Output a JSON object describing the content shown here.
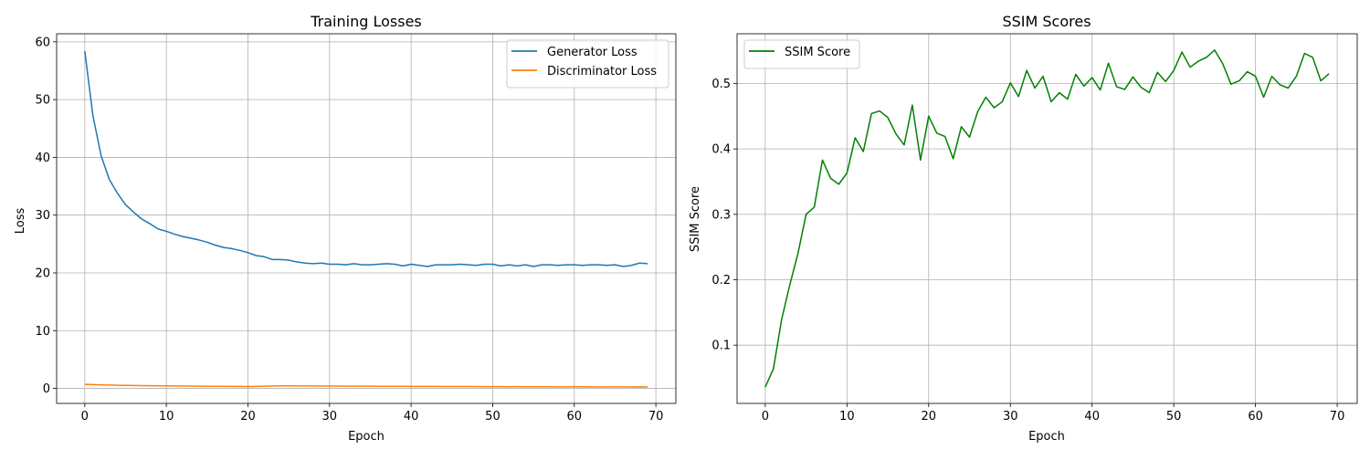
{
  "chart_data": [
    {
      "type": "line",
      "title": "Training Losses",
      "xlabel": "Epoch",
      "ylabel": "Loss",
      "xlim": [
        -3.45,
        72.45
      ],
      "ylim": [
        -2.6,
        61.4
      ],
      "xticks": [
        0,
        10,
        20,
        30,
        40,
        50,
        60,
        70
      ],
      "xtick_labels": [
        "0",
        "10",
        "20",
        "30",
        "40",
        "50",
        "60",
        "70"
      ],
      "yticks": [
        0,
        10,
        20,
        30,
        40,
        50,
        60
      ],
      "ytick_labels": [
        "0",
        "10",
        "20",
        "30",
        "40",
        "50",
        "60"
      ],
      "grid": true,
      "legend_position": "top-right",
      "series": [
        {
          "name": "Generator Loss",
          "color": "#1f77b4",
          "x": [
            0,
            1,
            2,
            3,
            4,
            5,
            6,
            7,
            8,
            9,
            10,
            11,
            12,
            13,
            14,
            15,
            16,
            17,
            18,
            19,
            20,
            21,
            22,
            23,
            24,
            25,
            26,
            27,
            28,
            29,
            30,
            31,
            32,
            33,
            34,
            35,
            36,
            37,
            38,
            39,
            40,
            41,
            42,
            43,
            44,
            45,
            46,
            47,
            48,
            49,
            50,
            51,
            52,
            53,
            54,
            55,
            56,
            57,
            58,
            59,
            60,
            61,
            62,
            63,
            64,
            65,
            66,
            67,
            68,
            69
          ],
          "values": [
            58.4,
            47.2,
            40.3,
            36.2,
            33.8,
            31.8,
            30.5,
            29.3,
            28.5,
            27.6,
            27.2,
            26.7,
            26.3,
            26.0,
            25.7,
            25.3,
            24.8,
            24.4,
            24.2,
            23.9,
            23.5,
            23.0,
            22.8,
            22.3,
            22.3,
            22.2,
            21.9,
            21.7,
            21.6,
            21.7,
            21.5,
            21.5,
            21.4,
            21.6,
            21.4,
            21.4,
            21.5,
            21.6,
            21.5,
            21.2,
            21.5,
            21.3,
            21.1,
            21.4,
            21.4,
            21.4,
            21.5,
            21.4,
            21.3,
            21.5,
            21.5,
            21.2,
            21.4,
            21.2,
            21.4,
            21.1,
            21.4,
            21.4,
            21.3,
            21.4,
            21.4,
            21.3,
            21.4,
            21.4,
            21.3,
            21.4,
            21.1,
            21.3,
            21.7,
            21.6
          ]
        },
        {
          "name": "Discriminator Loss",
          "color": "#ff7f0e",
          "x": [
            0,
            1,
            2,
            3,
            4,
            5,
            6,
            7,
            8,
            9,
            10,
            11,
            12,
            13,
            14,
            15,
            16,
            17,
            18,
            19,
            20,
            21,
            22,
            23,
            24,
            25,
            26,
            27,
            28,
            29,
            30,
            31,
            32,
            33,
            34,
            35,
            36,
            37,
            38,
            39,
            40,
            41,
            42,
            43,
            44,
            45,
            46,
            47,
            48,
            49,
            50,
            51,
            52,
            53,
            54,
            55,
            56,
            57,
            58,
            59,
            60,
            61,
            62,
            63,
            64,
            65,
            66,
            67,
            68,
            69
          ],
          "values": [
            0.7,
            0.65,
            0.6,
            0.58,
            0.55,
            0.52,
            0.5,
            0.48,
            0.46,
            0.45,
            0.44,
            0.42,
            0.41,
            0.4,
            0.38,
            0.37,
            0.36,
            0.36,
            0.35,
            0.34,
            0.33,
            0.35,
            0.38,
            0.42,
            0.45,
            0.44,
            0.43,
            0.42,
            0.42,
            0.41,
            0.4,
            0.4,
            0.39,
            0.39,
            0.38,
            0.38,
            0.37,
            0.37,
            0.36,
            0.36,
            0.35,
            0.35,
            0.34,
            0.34,
            0.33,
            0.33,
            0.32,
            0.32,
            0.33,
            0.31,
            0.3,
            0.3,
            0.29,
            0.3,
            0.28,
            0.29,
            0.29,
            0.28,
            0.27,
            0.26,
            0.3,
            0.27,
            0.28,
            0.25,
            0.26,
            0.27,
            0.26,
            0.25,
            0.27,
            0.25
          ]
        }
      ]
    },
    {
      "type": "line",
      "title": "SSIM Scores",
      "xlabel": "Epoch",
      "ylabel": "SSIM Score",
      "xlim": [
        -3.45,
        72.45
      ],
      "ylim": [
        0.011,
        0.576
      ],
      "xticks": [
        0,
        10,
        20,
        30,
        40,
        50,
        60,
        70
      ],
      "xtick_labels": [
        "0",
        "10",
        "20",
        "30",
        "40",
        "50",
        "60",
        "70"
      ],
      "yticks": [
        0.1,
        0.2,
        0.3,
        0.4,
        0.5
      ],
      "ytick_labels": [
        "0.1",
        "0.2",
        "0.3",
        "0.4",
        "0.5"
      ],
      "grid": true,
      "legend_position": "top-left",
      "series": [
        {
          "name": "SSIM Score",
          "color": "#008000",
          "x": [
            0,
            1,
            2,
            3,
            4,
            5,
            6,
            7,
            8,
            9,
            10,
            11,
            12,
            13,
            14,
            15,
            16,
            17,
            18,
            19,
            20,
            21,
            22,
            23,
            24,
            25,
            26,
            27,
            28,
            29,
            30,
            31,
            32,
            33,
            34,
            35,
            36,
            37,
            38,
            39,
            40,
            41,
            42,
            43,
            44,
            45,
            46,
            47,
            48,
            49,
            50,
            51,
            52,
            53,
            54,
            55,
            56,
            57,
            58,
            59,
            60,
            61,
            62,
            63,
            64,
            65,
            66,
            67,
            68,
            69
          ],
          "values": [
            0.036,
            0.064,
            0.139,
            0.192,
            0.24,
            0.3,
            0.311,
            0.383,
            0.355,
            0.346,
            0.363,
            0.417,
            0.396,
            0.454,
            0.458,
            0.448,
            0.423,
            0.406,
            0.467,
            0.383,
            0.45,
            0.424,
            0.419,
            0.385,
            0.434,
            0.418,
            0.457,
            0.479,
            0.463,
            0.472,
            0.501,
            0.48,
            0.52,
            0.493,
            0.511,
            0.472,
            0.486,
            0.476,
            0.514,
            0.496,
            0.509,
            0.49,
            0.531,
            0.495,
            0.491,
            0.51,
            0.494,
            0.486,
            0.517,
            0.503,
            0.52,
            0.548,
            0.525,
            0.534,
            0.54,
            0.551,
            0.53,
            0.499,
            0.504,
            0.518,
            0.511,
            0.479,
            0.511,
            0.498,
            0.493,
            0.511,
            0.546,
            0.54,
            0.504,
            0.515
          ]
        }
      ]
    }
  ]
}
